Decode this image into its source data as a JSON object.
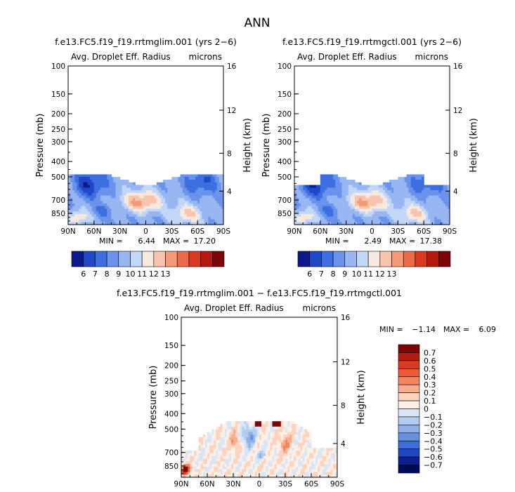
{
  "title": "ANN",
  "chart_data": [
    {
      "type": "heatmap",
      "title": "f.e13.FC5.f19_f19.rrtmglim.001 (yrs 2−6)",
      "variable": "Avg. Droplet Eff. Radius",
      "units": "microns",
      "ylabel": "Pressure (mb)",
      "ylabel_right": "Height (km)",
      "x_ticks": [
        "90N",
        "60N",
        "30N",
        "0",
        "30S",
        "60S",
        "90S"
      ],
      "y_ticks": [
        "100",
        "150",
        "200",
        "250",
        "300",
        "400",
        "500",
        "700",
        "850"
      ],
      "y_right_ticks": [
        "16",
        "12",
        "8",
        "4"
      ],
      "ylim": [
        1000,
        100
      ],
      "xlim": [
        90,
        -90
      ],
      "min_label": "MIN =",
      "min_value": "6.44",
      "max_label": "MAX =",
      "max_value": "17.20",
      "colorbar_labels": [
        "6",
        "7",
        "8",
        "9",
        "10",
        "11",
        "12",
        "13"
      ]
    },
    {
      "type": "heatmap",
      "title": "f.e13.FC5.f19_f19.rrtmgctl.001 (yrs 2−6)",
      "variable": "Avg. Droplet Eff. Radius",
      "units": "microns",
      "ylabel": "Pressure (mb)",
      "ylabel_right": "Height (km)",
      "x_ticks": [
        "90N",
        "60N",
        "30N",
        "0",
        "30S",
        "60S",
        "90S"
      ],
      "y_ticks": [
        "100",
        "150",
        "200",
        "250",
        "300",
        "400",
        "500",
        "700",
        "850"
      ],
      "y_right_ticks": [
        "16",
        "12",
        "8",
        "4"
      ],
      "ylim": [
        1000,
        100
      ],
      "xlim": [
        90,
        -90
      ],
      "min_label": "MIN =",
      "min_value": "2.49",
      "max_label": "MAX =",
      "max_value": "17.38",
      "colorbar_labels": [
        "6",
        "7",
        "8",
        "9",
        "10",
        "11",
        "12",
        "13"
      ]
    },
    {
      "type": "heatmap",
      "title": "f.e13.FC5.f19_f19.rrtmglim.001 − f.e13.FC5.f19_f19.rrtmgctl.001",
      "variable": "Avg. Droplet Eff. Radius",
      "units": "microns",
      "ylabel": "Pressure (mb)",
      "ylabel_right": "Height (km)",
      "x_ticks": [
        "90N",
        "60N",
        "30N",
        "0",
        "30S",
        "60S",
        "90S"
      ],
      "y_ticks": [
        "100",
        "150",
        "200",
        "250",
        "300",
        "400",
        "500",
        "700",
        "850"
      ],
      "y_right_ticks": [
        "16",
        "12",
        "8",
        "4"
      ],
      "ylim": [
        1000,
        100
      ],
      "xlim": [
        90,
        -90
      ],
      "min_label": "MIN =",
      "min_value": "−1.14",
      "max_label": "MAX =",
      "max_value": "6.09",
      "colorbar_labels": [
        "0.7",
        "0.6",
        "0.5",
        "0.4",
        "0.3",
        "0.2",
        "0.1",
        "0",
        "−0.1",
        "−0.2",
        "−0.3",
        "−0.4",
        "−0.5",
        "−0.6",
        "−0.7"
      ]
    }
  ],
  "colors": {
    "seq_scale": [
      "#0a1a8c",
      "#1f47c8",
      "#3d6fe0",
      "#6a93ec",
      "#97b6f2",
      "#c2d6f6",
      "#f7e9e0",
      "#f9c4ad",
      "#f49a78",
      "#ec6a48",
      "#d93a22",
      "#b41a0f",
      "#7e0505"
    ],
    "diff_scale": [
      "#7e0505",
      "#b41a0f",
      "#d93a22",
      "#ec5a38",
      "#f48560",
      "#f8ad8e",
      "#fbd3bf",
      "#fdf1e6",
      "#d9e6f7",
      "#b5ccf1",
      "#8fb0ea",
      "#6790e2",
      "#3f6dd8",
      "#2047c0",
      "#0d1f95",
      "#000a5c"
    ]
  }
}
